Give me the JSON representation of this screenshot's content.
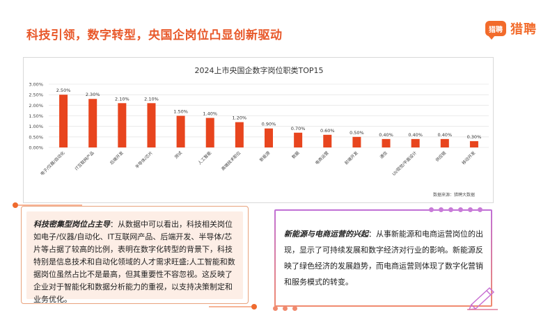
{
  "header": {
    "title": "科技引领，数字转型，央国企岗位凸显创新驱动",
    "logo_badge": "猎聘",
    "logo_text": "猎聘"
  },
  "chart_data": {
    "type": "bar",
    "title": "2024上市央国企数字岗位职类TOP15",
    "categories": [
      "电子/仪器/自动化",
      "IT互联网产品",
      "后端开发",
      "半导体/芯片",
      "测试",
      "人工智能",
      "高端技术职位",
      "新能源",
      "数据",
      "电商运营",
      "前端开发",
      "通信",
      "UI/视觉/平面设计",
      "供应链",
      "移动开发"
    ],
    "values": [
      2.5,
      2.3,
      2.1,
      2.1,
      1.5,
      1.4,
      1.2,
      0.9,
      0.7,
      0.6,
      0.5,
      0.4,
      0.4,
      0.4,
      0.3
    ],
    "value_labels": [
      "2.50%",
      "2.30%",
      "2.10%",
      "2.10%",
      "1.50%",
      "1.40%",
      "1.20%",
      "0.90%",
      "0.70%",
      "0.60%",
      "0.50%",
      "0.40%",
      "0.40%",
      "0.40%",
      "0.30%"
    ],
    "yticks": [
      "0.00%",
      "0.50%",
      "1.00%",
      "1.50%",
      "2.00%",
      "2.50%",
      "3.00%"
    ],
    "ylim": [
      0,
      3.0
    ],
    "bar_color": "#e8451e",
    "grid": true,
    "source": "数据来源：猎聘大数据"
  },
  "left_card": {
    "heading": "科技密集型岗位占主导",
    "body": "：从数据中可以看出，科技相关岗位如电子/仪器/自动化、IT互联网产品、后端开发、半导体/芯片等占据了较高的比例，表明在数字化转型的背景下，科技特别是信息技术和自动化领域的人才需求旺盛;人工智能和数据岗位虽然占比不是最高，但其重要性不容忽视。这反映了企业对于智能化和数据分析能力的重视，以支持决策制定和业务优化。"
  },
  "right_card": {
    "heading": "新能源与电商运营的兴起",
    "body": "：从事新能源和电商运营岗位的出现，显示了可持续发展和数字经济对行业的影响。新能源反映了绿色经济的发展趋势，而电商运营则体现了数字化营销和服务模式的转变。"
  },
  "colors": {
    "accent": "#e8582a",
    "bar": "#e8451e",
    "purple": "#b765d3"
  }
}
